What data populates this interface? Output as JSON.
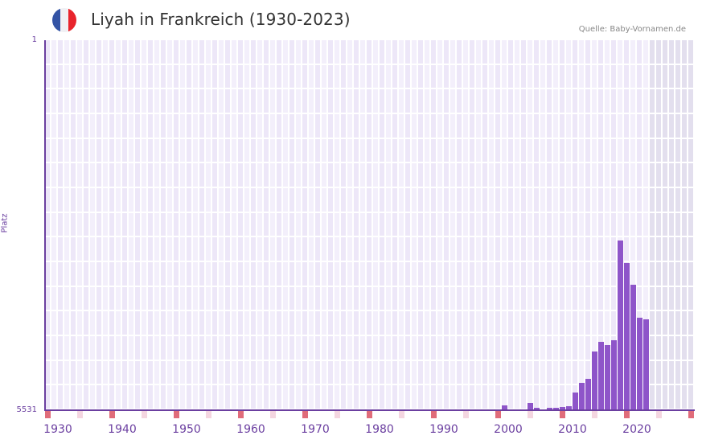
{
  "header": {
    "title": "Liyah in Frankreich (1930-2023)",
    "source": "Quelle: Baby-Vornamen.de",
    "flag_colors": [
      "#3454a5",
      "#f0f0f4",
      "#e8242c"
    ]
  },
  "colors": {
    "bar": "#8e55c9",
    "axis": "#6b3fa0",
    "grid_light": "#f3effb",
    "grid_dark": "#ede7f8",
    "future_bg": "#e3dfee",
    "decade_marker": "#e06c7a",
    "half_decade_marker": "#f4d6e0"
  },
  "chart_data": {
    "type": "bar",
    "title": "Liyah in Frankreich (1930-2023)",
    "xlabel": "",
    "ylabel": "Platz",
    "ylim": [
      5531,
      1
    ],
    "y_inverted": true,
    "y_ticks": [
      "1",
      "5531"
    ],
    "x_range": [
      1930,
      2030
    ],
    "x_ticks": [
      "1930",
      "1940",
      "1950",
      "1960",
      "1970",
      "1980",
      "1990",
      "2000",
      "2010",
      "2020"
    ],
    "grid": true,
    "legend": null,
    "categories": [
      2001,
      2005,
      2006,
      2007,
      2008,
      2009,
      2010,
      2011,
      2012,
      2013,
      2014,
      2015,
      2016,
      2017,
      2018,
      2019,
      2020,
      2021,
      2022,
      2023
    ],
    "series": [
      {
        "name": "Platz",
        "values": [
          5458,
          5422,
          5686,
          5518,
          5662,
          5698,
          5482,
          5470,
          5265,
          5121,
          5061,
          4652,
          4508,
          4556,
          4484,
          2993,
          3330,
          3654,
          4147,
          4171
        ]
      }
    ],
    "note": "Ranks above 5531 shown as zero-height; values estimated from bar heights (rank 1 at top, 5531 at baseline)."
  },
  "axis": {
    "y_top_label": "1",
    "y_bottom_label": "5531",
    "y_title": "Platz",
    "x_labels": [
      "1930",
      "1940",
      "1950",
      "1960",
      "1970",
      "1980",
      "1990",
      "2000",
      "2010",
      "2020"
    ]
  }
}
